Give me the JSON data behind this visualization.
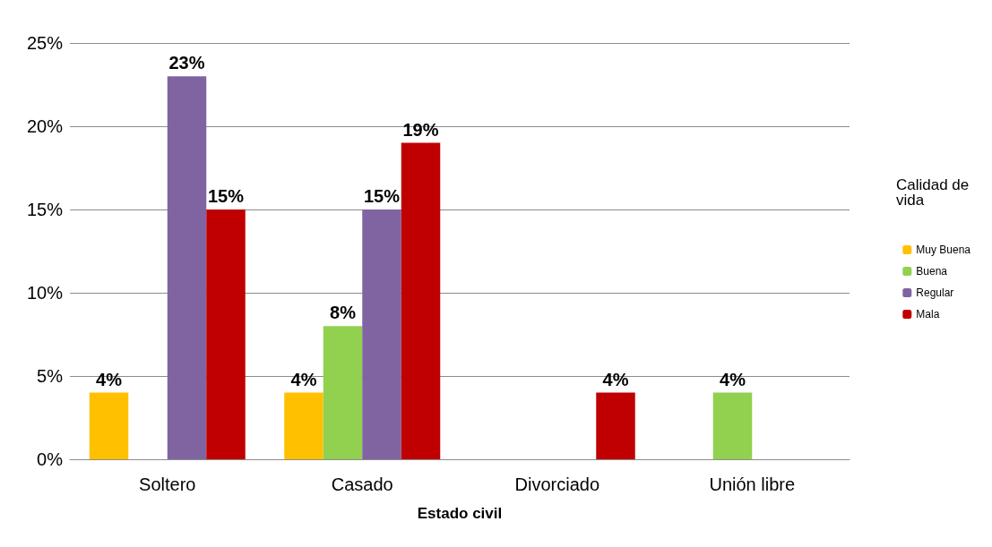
{
  "chart_data": {
    "type": "bar",
    "xlabel": "Estado civil",
    "legend_title": "Calidad de vida",
    "categories": [
      "Soltero",
      "Casado",
      "Divorciado",
      "Unión libre"
    ],
    "series": [
      {
        "name": "Muy Buena",
        "color": "#ffc000",
        "values": [
          4,
          4,
          0,
          0
        ],
        "value_labels": [
          "4%",
          "4%",
          null,
          null
        ]
      },
      {
        "name": "Buena",
        "color": "#92d050",
        "values": [
          0,
          8,
          0,
          4
        ],
        "value_labels": [
          null,
          "8%",
          null,
          "4%"
        ]
      },
      {
        "name": "Regular",
        "color": "#8064a2",
        "values": [
          23,
          15,
          0,
          0
        ],
        "value_labels": [
          "23%",
          "15%",
          null,
          null
        ]
      },
      {
        "name": "Mala",
        "color": "#c00000",
        "values": [
          15,
          19,
          4,
          0
        ],
        "value_labels": [
          "15%",
          "19%",
          "4%",
          null
        ]
      }
    ],
    "ylim": [
      0,
      25
    ],
    "yticks": [
      {
        "value": 0,
        "label": "0%"
      },
      {
        "value": 5,
        "label": "5%"
      },
      {
        "value": 10,
        "label": "10%"
      },
      {
        "value": 15,
        "label": "15%"
      },
      {
        "value": 20,
        "label": "20%"
      },
      {
        "value": 25,
        "label": "25%"
      }
    ],
    "grid": "y",
    "legend": "right"
  }
}
